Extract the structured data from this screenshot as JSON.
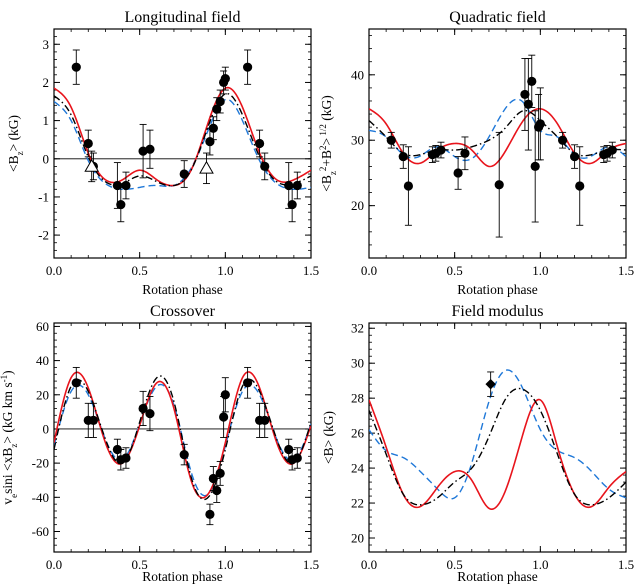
{
  "colors": {
    "red_model": "#e8141c",
    "blue_model": "#1f78d8",
    "black_model": "#000000",
    "axes": "#000000"
  },
  "line_styles": {
    "red_model": "solid",
    "blue_model": "dashed",
    "black_model": "dash-dot"
  },
  "chart_data": [
    {
      "id": "longitudinal",
      "type": "scatter",
      "title": "Longitudinal field",
      "xlabel": "Rotation phase",
      "ylabel": "<B_z> (kG)",
      "xlim": [
        0,
        1.5
      ],
      "ylim": [
        -2.6,
        3.4
      ],
      "xticks": [
        "0.0",
        "0.5",
        "1.0",
        "1.5"
      ],
      "yticks": [
        "-2",
        "-1",
        "0",
        "1",
        "2",
        "3"
      ],
      "grid": false,
      "zero_line": true,
      "series": [
        {
          "marker": "filled-circle",
          "x": [
            0.13,
            0.2,
            0.23,
            0.37,
            0.39,
            0.42,
            0.52,
            0.56,
            0.76,
            0.91,
            0.93,
            0.95,
            0.97,
            0.99,
            1.0,
            1.13,
            1.2,
            1.23,
            1.37,
            1.39,
            1.42
          ],
          "y": [
            2.4,
            0.4,
            -0.2,
            -0.7,
            -1.2,
            -0.7,
            0.2,
            0.25,
            -0.4,
            0.45,
            0.8,
            1.3,
            1.5,
            2.0,
            2.1,
            2.4,
            0.4,
            -0.2,
            -0.7,
            -1.2,
            -0.7
          ],
          "err": [
            0.45,
            0.35,
            0.35,
            0.6,
            0.45,
            0.35,
            0.7,
            0.5,
            0.35,
            0.35,
            0.3,
            0.3,
            0.3,
            0.3,
            0.3,
            0.45,
            0.35,
            0.35,
            0.6,
            0.45,
            0.35
          ]
        },
        {
          "marker": "open-triangle",
          "x": [
            0.22,
            0.89
          ],
          "y": [
            -0.2,
            -0.25
          ],
          "err": [
            0.4,
            0.4
          ]
        },
        {
          "style": "red_model",
          "x": [
            0,
            0.1,
            0.2,
            0.3,
            0.4,
            0.5,
            0.6,
            0.7,
            0.8,
            0.9,
            1.0,
            1.1,
            1.2,
            1.3,
            1.4,
            1.5
          ],
          "y": [
            1.85,
            1.35,
            0.15,
            -0.55,
            -0.55,
            -0.3,
            -0.55,
            -0.7,
            -0.3,
            0.95,
            1.85,
            1.35,
            0.15,
            -0.55,
            -0.55,
            -0.3
          ]
        },
        {
          "style": "blue_model",
          "x": [
            0,
            0.1,
            0.2,
            0.3,
            0.4,
            0.5,
            0.6,
            0.7,
            0.8,
            0.9,
            1.0,
            1.1,
            1.2,
            1.3,
            1.4,
            1.5
          ],
          "y": [
            1.5,
            1.0,
            -0.05,
            -0.65,
            -0.8,
            -0.75,
            -0.7,
            -0.7,
            -0.25,
            0.75,
            1.55,
            1.0,
            -0.05,
            -0.65,
            -0.8,
            -0.75
          ]
        },
        {
          "style": "black_model",
          "x": [
            0,
            0.1,
            0.2,
            0.3,
            0.4,
            0.5,
            0.6,
            0.7,
            0.8,
            0.9,
            1.0,
            1.1,
            1.2,
            1.3,
            1.4,
            1.5
          ],
          "y": [
            1.65,
            1.15,
            0.05,
            -0.6,
            -0.65,
            -0.45,
            -0.6,
            -0.7,
            -0.3,
            0.85,
            1.7,
            1.15,
            0.05,
            -0.6,
            -0.65,
            -0.45
          ]
        }
      ]
    },
    {
      "id": "quadratic",
      "type": "scatter",
      "title": "Quadratic field",
      "xlabel": "Rotation phase",
      "ylabel": "<B_z^2+B^2>^(1/2) (kG)",
      "xlim": [
        0,
        1.5
      ],
      "ylim": [
        12,
        47
      ],
      "xticks": [
        "0.0",
        "0.5",
        "1.0",
        "1.5"
      ],
      "yticks": [
        "20",
        "30",
        "40"
      ],
      "grid": false,
      "series": [
        {
          "marker": "filled-circle",
          "x": [
            0.13,
            0.2,
            0.23,
            0.37,
            0.39,
            0.42,
            0.52,
            0.56,
            0.76,
            0.91,
            0.93,
            0.95,
            0.97,
            0.99,
            1.0,
            1.13,
            1.2,
            1.23,
            1.37,
            1.39,
            1.42
          ],
          "y": [
            30,
            27.5,
            23,
            27.8,
            28,
            28.5,
            25,
            28,
            23.2,
            37,
            35.5,
            39,
            26,
            32,
            32.5,
            30,
            27.5,
            23,
            27.8,
            28,
            28.5
          ],
          "err": [
            1.2,
            1.8,
            6,
            1.2,
            1.2,
            1.2,
            2.5,
            2.5,
            8,
            5.5,
            7,
            4,
            8.5,
            5,
            5.5,
            1.2,
            1.8,
            6,
            1.2,
            1.2,
            1.2
          ]
        },
        {
          "style": "red_model",
          "x": [
            0,
            0.1,
            0.2,
            0.3,
            0.4,
            0.5,
            0.6,
            0.7,
            0.8,
            0.9,
            1.0,
            1.1,
            1.2,
            1.3,
            1.4,
            1.5
          ],
          "y": [
            34.8,
            32.5,
            28,
            26.5,
            28.5,
            29.5,
            28.5,
            26.0,
            28.5,
            33.0,
            34.8,
            32.5,
            28,
            26.5,
            28.5,
            29.5
          ]
        },
        {
          "style": "blue_model",
          "x": [
            0,
            0.1,
            0.2,
            0.3,
            0.4,
            0.5,
            0.6,
            0.7,
            0.8,
            0.9,
            1.0,
            1.1,
            1.2,
            1.3,
            1.4,
            1.5
          ],
          "y": [
            31.5,
            30.5,
            27.8,
            27.6,
            29.0,
            27.5,
            27.2,
            30.5,
            35.0,
            35.8,
            31.5,
            30.5,
            27.8,
            27.6,
            29.0,
            27.5
          ]
        },
        {
          "style": "black_model",
          "x": [
            0,
            0.1,
            0.2,
            0.3,
            0.4,
            0.5,
            0.6,
            0.7,
            0.8,
            0.9,
            1.0,
            1.1,
            1.2,
            1.3,
            1.4,
            1.5
          ],
          "y": [
            33.0,
            30.5,
            28.0,
            27.8,
            28.5,
            28.5,
            29.0,
            30.0,
            32.0,
            34.5,
            33.0,
            30.5,
            28.0,
            27.8,
            28.5,
            28.5
          ]
        }
      ]
    },
    {
      "id": "crossover",
      "type": "scatter",
      "title": "Crossover",
      "xlabel": "Rotation phase",
      "ylabel": "v_e sini <xB_z> (kG km s^-1)",
      "xlim": [
        0,
        1.5
      ],
      "ylim": [
        -72,
        62
      ],
      "xticks": [
        "0.0",
        "0.5",
        "1.0",
        "1.5"
      ],
      "yticks": [
        "-60",
        "-40",
        "-20",
        "0",
        "20",
        "40",
        "60"
      ],
      "grid": false,
      "zero_line": true,
      "series": [
        {
          "marker": "filled-circle",
          "x": [
            0.13,
            0.2,
            0.23,
            0.37,
            0.39,
            0.42,
            0.52,
            0.56,
            0.76,
            0.91,
            0.93,
            0.95,
            0.97,
            0.99,
            1.0,
            1.13,
            1.2,
            1.23,
            1.37,
            1.39,
            1.42
          ],
          "y": [
            27,
            5,
            5,
            -12,
            -18,
            -17,
            12,
            9,
            -15,
            -50,
            -29,
            -36,
            -26,
            7,
            20,
            27,
            5,
            5,
            -12,
            -18,
            -17
          ],
          "err": [
            9,
            10,
            10,
            6,
            6,
            6,
            10,
            10,
            6,
            6,
            7,
            7,
            7,
            12,
            10,
            9,
            10,
            10,
            6,
            6,
            6
          ]
        },
        {
          "style": "red_model",
          "x": [
            0,
            0.1,
            0.2,
            0.3,
            0.4,
            0.5,
            0.6,
            0.7,
            0.8,
            0.9,
            1.0,
            1.1,
            1.2,
            1.3,
            1.4,
            1.5
          ],
          "y": [
            -8,
            30,
            24,
            -8,
            -20,
            2,
            27,
            12,
            -30,
            -38,
            -8,
            30,
            24,
            -8,
            -20,
            2
          ]
        },
        {
          "style": "blue_model",
          "x": [
            0,
            0.1,
            0.2,
            0.3,
            0.4,
            0.5,
            0.6,
            0.7,
            0.8,
            0.9,
            1.0,
            1.1,
            1.2,
            1.3,
            1.4,
            1.5
          ],
          "y": [
            -10,
            22,
            20,
            -6,
            -18,
            3,
            25,
            14,
            -25,
            -38,
            -10,
            22,
            20,
            -6,
            -18,
            3
          ]
        },
        {
          "style": "black_model",
          "x": [
            0,
            0.1,
            0.2,
            0.3,
            0.4,
            0.5,
            0.6,
            0.7,
            0.8,
            0.9,
            1.0,
            1.1,
            1.2,
            1.3,
            1.4,
            1.5
          ],
          "y": [
            -12,
            25,
            22,
            -6,
            -20,
            4,
            30,
            16,
            -28,
            -40,
            -12,
            25,
            22,
            -6,
            -20,
            4
          ]
        }
      ]
    },
    {
      "id": "modulus",
      "type": "scatter",
      "title": "Field modulus",
      "xlabel": "Rotation phase",
      "ylabel": "<B> (kG)",
      "xlim": [
        0,
        1.5
      ],
      "ylim": [
        19.2,
        32.3
      ],
      "xticks": [
        "0.0",
        "0.5",
        "1.0",
        "1.5"
      ],
      "yticks": [
        "20",
        "22",
        "24",
        "26",
        "28",
        "30",
        "32"
      ],
      "grid": false,
      "series": [
        {
          "marker": "filled-diamond",
          "x": [
            0.71
          ],
          "y": [
            28.8
          ],
          "err": [
            0.7
          ]
        },
        {
          "style": "red_model",
          "x": [
            0,
            0.1,
            0.2,
            0.3,
            0.4,
            0.5,
            0.6,
            0.7,
            0.8,
            0.9,
            1.0,
            1.1,
            1.2,
            1.3,
            1.4,
            1.5
          ],
          "y": [
            27.9,
            25.2,
            22.5,
            21.8,
            22.9,
            23.8,
            23.3,
            21.7,
            22.8,
            26.0,
            27.9,
            25.2,
            22.5,
            21.8,
            22.9,
            23.8
          ]
        },
        {
          "style": "blue_model",
          "x": [
            0,
            0.1,
            0.2,
            0.3,
            0.4,
            0.5,
            0.6,
            0.7,
            0.8,
            0.9,
            1.0,
            1.1,
            1.2,
            1.3,
            1.4,
            1.5
          ],
          "y": [
            26.2,
            25.0,
            24.6,
            23.8,
            22.8,
            22.3,
            24.3,
            27.8,
            29.6,
            28.5,
            26.2,
            25.0,
            24.6,
            23.8,
            22.8,
            22.3
          ]
        },
        {
          "style": "black_model",
          "x": [
            0,
            0.1,
            0.2,
            0.3,
            0.4,
            0.5,
            0.6,
            0.7,
            0.8,
            0.9,
            1.0,
            1.1,
            1.2,
            1.3,
            1.4,
            1.5
          ],
          "y": [
            27.3,
            24.8,
            22.5,
            21.9,
            22.3,
            23.2,
            24.0,
            25.8,
            28.0,
            28.5,
            27.3,
            24.8,
            22.5,
            21.9,
            22.3,
            23.2
          ]
        }
      ]
    }
  ]
}
